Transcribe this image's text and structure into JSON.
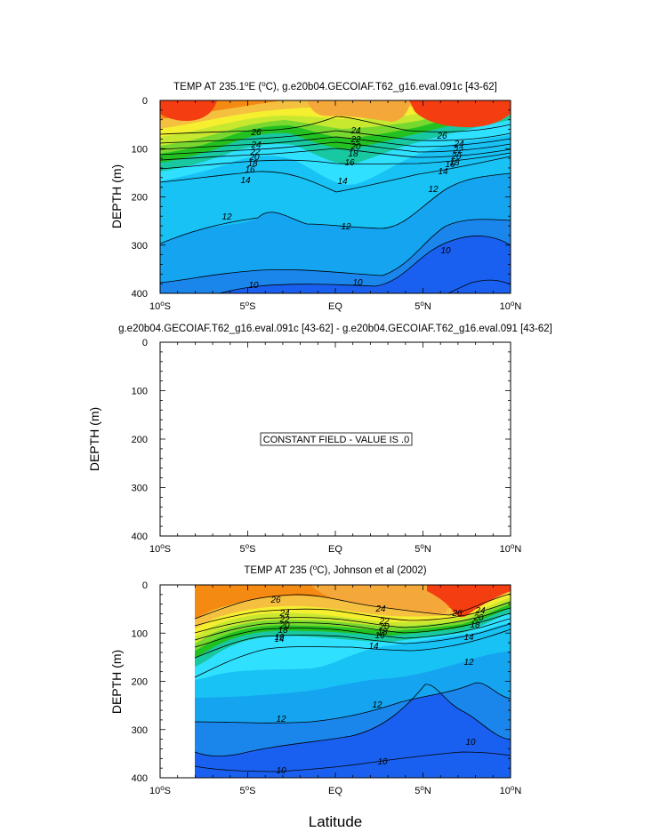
{
  "figure": {
    "xlabel": "Latitude"
  },
  "colors": {
    "red": "#f53d12",
    "orange": "#f58a12",
    "light_orange": "#f5a83a",
    "gold": "#f5c040",
    "yellow": "#f5ef30",
    "yellow_green": "#c8e830",
    "light_green": "#78d830",
    "green": "#22c020",
    "teal": "#18c8a0",
    "cyan": "#30e0ff",
    "sky": "#18c2f5",
    "blue": "#14a4f0",
    "mid_blue": "#1a86ec",
    "deep_blue": "#1a60f0"
  },
  "chart_data": [
    {
      "type": "contour",
      "title": "TEMP AT 235.1°E (°C), g.e20b04.GECOIAF.T62_g16.eval.091c [43-62]",
      "title_parts": {
        "pre": "TEMP AT 235.1",
        "deg1": "o",
        "mid": "E (",
        "deg2": "o",
        "post": "C), g.e20b04.GECOIAF.T62_g16.eval.091c [43-62]"
      },
      "xlabel": "",
      "ylabel": "DEPTH (m)",
      "xlim": [
        -10,
        10
      ],
      "ylim": [
        400,
        0
      ],
      "x_ticks": [
        -10,
        -5,
        0,
        5,
        10
      ],
      "y_ticks": [
        0,
        100,
        200,
        300,
        400
      ],
      "contour_levels": [
        10,
        12,
        14,
        16,
        18,
        20,
        22,
        24,
        26
      ],
      "labeled_isotherms_m": [
        {
          "temp": 26,
          "depth_at": [
            [
              -10,
              62
            ],
            [
              -5,
              70
            ],
            [
              0,
              46
            ],
            [
              5,
              70
            ],
            [
              10,
              60
            ]
          ]
        },
        {
          "temp": 24,
          "depth_at": [
            [
              -10,
              88
            ],
            [
              -5,
              92
            ],
            [
              0,
              72
            ],
            [
              5,
              90
            ],
            [
              10,
              86
            ]
          ]
        },
        {
          "temp": 20,
          "depth_at": [
            [
              -10,
              118
            ],
            [
              -5,
              114
            ],
            [
              0,
              92
            ],
            [
              5,
              108
            ],
            [
              10,
              108
            ]
          ]
        },
        {
          "temp": 16,
          "depth_at": [
            [
              -10,
              140
            ],
            [
              -5,
              132
            ],
            [
              0,
              140
            ],
            [
              5,
              130
            ],
            [
              10,
              118
            ]
          ]
        },
        {
          "temp": 14,
          "depth_at": [
            [
              -10,
              158
            ],
            [
              -5,
              152
            ],
            [
              0,
              170
            ],
            [
              5,
              145
            ],
            [
              10,
              126
            ]
          ]
        },
        {
          "temp": 12,
          "depth_at": [
            [
              -10,
              262
            ],
            [
              -5,
              252
            ],
            [
              0,
              262
            ],
            [
              5,
              210
            ],
            [
              10,
              192
            ]
          ]
        },
        {
          "temp": 10,
          "depth_at": [
            [
              -10,
              370
            ],
            [
              -5,
              380
            ],
            [
              0,
              376
            ],
            [
              5,
              360
            ],
            [
              10,
              300
            ]
          ]
        }
      ],
      "contour_labels": [
        "26",
        "24",
        "22",
        "20",
        "18",
        "16",
        "14",
        "12",
        "10"
      ]
    },
    {
      "type": "contour",
      "title": "g.e20b04.GECOIAF.T62_g16.eval.091c [43-62] - g.e20b04.GECOIAF.T62_g16.eval.091 [43-62]",
      "xlabel": "",
      "ylabel": "DEPTH (m)",
      "xlim": [
        -10,
        10
      ],
      "ylim": [
        400,
        0
      ],
      "x_ticks": [
        -10,
        -5,
        0,
        5,
        10
      ],
      "y_ticks": [
        0,
        100,
        200,
        300,
        400
      ],
      "annotation": "CONSTANT FIELD - VALUE IS .0"
    },
    {
      "type": "contour",
      "title": "TEMP AT 235 (°C), Johnson et al (2002)",
      "title_parts": {
        "pre": "TEMP AT 235 (",
        "deg": "o",
        "post": "C), Johnson et al (2002)"
      },
      "xlabel": "Latitude",
      "ylabel": "DEPTH (m)",
      "xlim": [
        -10,
        10
      ],
      "ylim": [
        400,
        0
      ],
      "x_ticks": [
        -10,
        -5,
        0,
        5,
        10
      ],
      "y_ticks": [
        0,
        100,
        200,
        300,
        400
      ],
      "data_x_range": [
        -8,
        10
      ],
      "contour_levels": [
        10,
        12,
        14,
        16,
        18,
        20,
        22,
        24,
        26
      ],
      "labeled_isotherms_m": [
        {
          "temp": 26,
          "depth_at": [
            [
              -8,
              40
            ],
            [
              -5,
              48
            ],
            [
              0,
              32
            ],
            [
              5,
              50
            ],
            [
              10,
              36
            ]
          ]
        },
        {
          "temp": 24,
          "depth_at": [
            [
              -8,
              62
            ],
            [
              -5,
              72
            ],
            [
              0,
              48
            ],
            [
              5,
              68
            ],
            [
              10,
              44
            ]
          ]
        },
        {
          "temp": 20,
          "depth_at": [
            [
              -8,
              88
            ],
            [
              -5,
              86
            ],
            [
              0,
              80
            ],
            [
              5,
              86
            ],
            [
              10,
              58
            ]
          ]
        },
        {
          "temp": 16,
          "depth_at": [
            [
              -8,
              110
            ],
            [
              -5,
              96
            ],
            [
              0,
              96
            ],
            [
              5,
              100
            ],
            [
              10,
              72
            ]
          ]
        },
        {
          "temp": 14,
          "depth_at": [
            [
              -8,
              130
            ],
            [
              -5,
              112
            ],
            [
              0,
              115
            ],
            [
              5,
              118
            ],
            [
              10,
              92
            ]
          ]
        },
        {
          "temp": 12,
          "depth_at": [
            [
              -8,
              285
            ],
            [
              -5,
              300
            ],
            [
              0,
              268
            ],
            [
              5,
              240
            ],
            [
              10,
              212
            ]
          ]
        },
        {
          "temp": 10,
          "depth_at": [
            [
              -8,
              345
            ],
            [
              -5,
              384
            ],
            [
              0,
              372
            ],
            [
              5,
              305
            ],
            [
              10,
              326
            ]
          ]
        }
      ],
      "contour_labels": [
        "26",
        "24",
        "22",
        "20",
        "18",
        "16",
        "14",
        "12",
        "10"
      ]
    }
  ]
}
